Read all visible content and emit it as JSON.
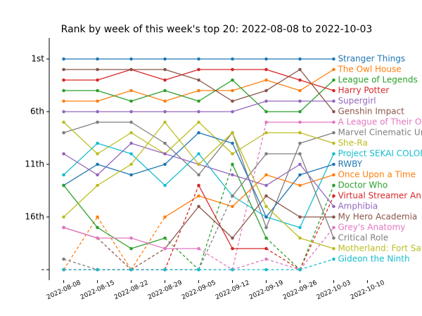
{
  "chart_data": {
    "type": "line",
    "title": "Rank by week of this week's top 20: 2022-08-08 to 2022-10-03",
    "x": [
      "2022-08-08",
      "2022-08-15",
      "2022-08-22",
      "2022-08-29",
      "2022-09-05",
      "2022-09-12",
      "2022-09-19",
      "2022-09-26",
      "2022-10-03"
    ],
    "xlim": [
      "2022-08-05",
      "2022-10-13"
    ],
    "xticks": [
      "2022-08-08",
      "2022-08-15",
      "2022-08-22",
      "2022-08-29",
      "2022-09-05",
      "2022-09-12",
      "2022-09-19",
      "2022-09-26",
      "2022-10-03",
      "2022-10-10"
    ],
    "ylim": [
      22,
      -1
    ],
    "yticks": [
      {
        "value": 1,
        "label": "1st"
      },
      {
        "value": 6,
        "label": "6th"
      },
      {
        "value": 11,
        "label": "11th"
      },
      {
        "value": 16,
        "label": "16th"
      },
      {
        "value": 21,
        "label": "-"
      }
    ],
    "series": [
      {
        "name": "Stranger Things",
        "color": "#1f77b4",
        "values": [
          1,
          1,
          1,
          1,
          1,
          1,
          1,
          1,
          1
        ]
      },
      {
        "name": "The Owl House",
        "color": "#ff7f0e",
        "values": [
          5,
          5,
          4,
          5,
          4,
          4,
          3,
          4,
          2
        ]
      },
      {
        "name": "League of Legends",
        "color": "#2ca02c",
        "values": [
          4,
          4,
          5,
          4,
          5,
          3,
          6,
          6,
          3
        ]
      },
      {
        "name": "Harry Potter",
        "color": "#d62728",
        "values": [
          3,
          3,
          2,
          3,
          2,
          2,
          2,
          3,
          4
        ]
      },
      {
        "name": "Supergirl",
        "color": "#9467bd",
        "values": [
          6,
          6,
          6,
          6,
          6,
          6,
          5,
          5,
          5
        ]
      },
      {
        "name": "Genshin Impact",
        "color": "#8c564b",
        "values": [
          2,
          2,
          2,
          2,
          3,
          5,
          4,
          2,
          6
        ]
      },
      {
        "name": "A League of Their Own",
        "color": "#e377c2",
        "values": [
          21,
          21,
          21,
          21,
          21,
          21,
          7,
          7,
          7
        ]
      },
      {
        "name": "Marvel Cinematic Universe",
        "color": "#7f7f7f",
        "values": [
          8,
          7,
          7,
          9,
          12,
          8,
          17,
          9,
          8
        ]
      },
      {
        "name": "She-Ra",
        "color": "#bcbd22",
        "values": [
          7,
          10,
          8,
          10,
          7,
          10,
          8,
          8,
          9
        ]
      },
      {
        "name": "Project SEKAI COLORFUL STAGE",
        "color": "#17becf",
        "values": [
          12,
          9,
          10,
          13,
          10,
          14,
          16,
          17,
          10
        ]
      },
      {
        "name": "RWBY",
        "color": "#1f77b4",
        "values": [
          13,
          11,
          12,
          11,
          8,
          9,
          16,
          12,
          11
        ]
      },
      {
        "name": "Once Upon a Time",
        "color": "#ff7f0e",
        "values": [
          21,
          16,
          21,
          16,
          14,
          15,
          12,
          13,
          12
        ]
      },
      {
        "name": "Doctor Who",
        "color": "#2ca02c",
        "values": [
          13,
          17,
          19,
          18,
          21,
          11,
          18,
          21,
          13
        ]
      },
      {
        "name": "Virtual Streamer Animation",
        "color": "#d62728",
        "values": [
          21,
          21,
          21,
          21,
          13,
          19,
          19,
          21,
          14
        ]
      },
      {
        "name": "Amphibia",
        "color": "#9467bd",
        "values": [
          10,
          12,
          9,
          10,
          11,
          12,
          13,
          11,
          15
        ]
      },
      {
        "name": "My Hero Academia",
        "color": "#8c564b",
        "values": [
          17,
          18,
          21,
          19,
          15,
          18,
          14,
          16,
          16
        ]
      },
      {
        "name": "Grey's Anatomy",
        "color": "#e377c2",
        "values": [
          17,
          18,
          18,
          19,
          19,
          21,
          20,
          21,
          17
        ]
      },
      {
        "name": "Critical Role",
        "color": "#7f7f7f",
        "values": [
          20,
          21,
          21,
          21,
          21,
          14,
          10,
          10,
          18
        ]
      },
      {
        "name": "Motherland: Fort Salem",
        "color": "#bcbd22",
        "values": [
          16,
          13,
          11,
          7,
          11,
          8,
          15,
          18,
          19
        ]
      },
      {
        "name": "Gideon the Ninth",
        "color": "#17becf",
        "values": [
          21,
          21,
          21,
          21,
          21,
          21,
          21,
          21,
          20
        ]
      }
    ]
  }
}
